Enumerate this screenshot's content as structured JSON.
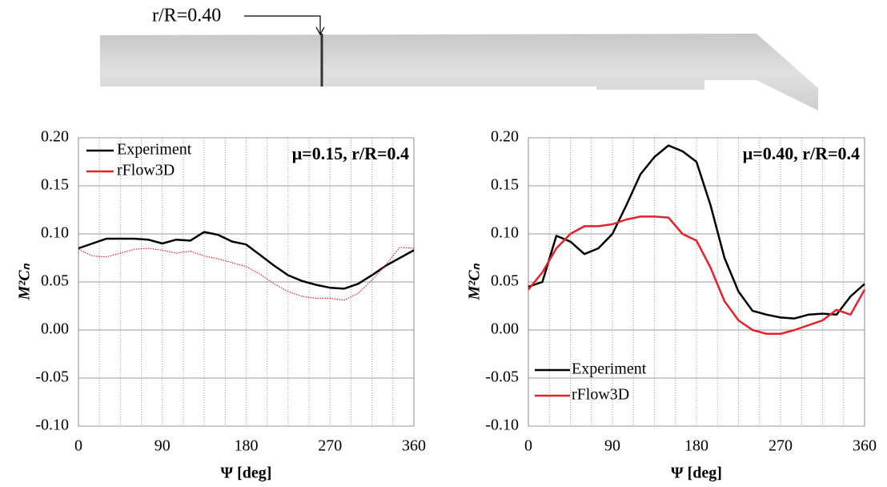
{
  "blade": {
    "label": "r/R=0.40"
  },
  "chart_data": [
    {
      "type": "line",
      "annotation": "μ=0.15, r/R=0.4",
      "xlabel": "Ψ [deg]",
      "ylabel": "M²Cₙ",
      "x": [
        0,
        15,
        30,
        45,
        60,
        75,
        90,
        105,
        120,
        135,
        150,
        165,
        180,
        195,
        210,
        225,
        240,
        255,
        270,
        285,
        300,
        315,
        330,
        345,
        360
      ],
      "series": [
        {
          "name": "Experiment",
          "color": "#000000",
          "style": "solid",
          "values": [
            0.085,
            0.09,
            0.095,
            0.095,
            0.095,
            0.094,
            0.09,
            0.094,
            0.093,
            0.102,
            0.099,
            0.092,
            0.089,
            0.078,
            0.067,
            0.057,
            0.051,
            0.047,
            0.044,
            0.043,
            0.048,
            0.057,
            0.067,
            0.075,
            0.083
          ]
        },
        {
          "name": "rFlow3D",
          "color": "#e8202a",
          "style": "dotted",
          "values": [
            0.084,
            0.077,
            0.076,
            0.08,
            0.084,
            0.085,
            0.083,
            0.08,
            0.082,
            0.077,
            0.074,
            0.07,
            0.066,
            0.058,
            0.048,
            0.04,
            0.035,
            0.033,
            0.033,
            0.031,
            0.038,
            0.052,
            0.068,
            0.086,
            0.085
          ]
        }
      ],
      "xlim": [
        0,
        360
      ],
      "xticks": [
        0,
        90,
        180,
        270,
        360
      ],
      "x_minor_grid": [
        22.5,
        45,
        67.5,
        90,
        112.5,
        135,
        157.5,
        180,
        202.5,
        225,
        247.5,
        270,
        292.5,
        315,
        337.5
      ],
      "ylim": [
        -0.1,
        0.2
      ],
      "yticks": [
        {
          "value": -0.1,
          "label": "-0.10"
        },
        {
          "value": -0.05,
          "label": "-0.05"
        },
        {
          "value": 0,
          "label": "0.00"
        },
        {
          "value": 0.05,
          "label": "0.05"
        },
        {
          "value": 0.1,
          "label": "0.10"
        },
        {
          "value": 0.15,
          "label": "0.15"
        },
        {
          "value": 0.2,
          "label": "0.20"
        }
      ],
      "grid": true,
      "legend": "upper left"
    },
    {
      "type": "line",
      "annotation": "μ=0.40, r/R=0.4",
      "xlabel": "Ψ [deg]",
      "ylabel": "M²Cₙ",
      "x": [
        0,
        15,
        30,
        45,
        60,
        75,
        90,
        105,
        120,
        135,
        150,
        165,
        180,
        195,
        210,
        225,
        240,
        255,
        270,
        285,
        300,
        315,
        330,
        345,
        360
      ],
      "series": [
        {
          "name": "Experiment",
          "color": "#000000",
          "style": "solid",
          "values": [
            0.045,
            0.05,
            0.098,
            0.092,
            0.079,
            0.085,
            0.1,
            0.13,
            0.162,
            0.18,
            0.192,
            0.186,
            0.175,
            0.13,
            0.075,
            0.04,
            0.02,
            0.016,
            0.013,
            0.012,
            0.016,
            0.017,
            0.016,
            0.035,
            0.048
          ]
        },
        {
          "name": "rFlow3D",
          "color": "#e8202a",
          "style": "solid",
          "values": [
            0.042,
            0.06,
            0.085,
            0.1,
            0.108,
            0.108,
            0.11,
            0.115,
            0.118,
            0.118,
            0.117,
            0.1,
            0.093,
            0.065,
            0.03,
            0.01,
            0.0,
            -0.004,
            -0.004,
            0.0,
            0.005,
            0.01,
            0.021,
            0.016,
            0.042
          ]
        }
      ],
      "xlim": [
        0,
        360
      ],
      "xticks": [
        0,
        90,
        180,
        270,
        360
      ],
      "x_minor_grid": [
        22.5,
        45,
        67.5,
        90,
        112.5,
        135,
        157.5,
        180,
        202.5,
        225,
        247.5,
        270,
        292.5,
        315,
        337.5
      ],
      "ylim": [
        -0.1,
        0.2
      ],
      "yticks": [
        {
          "value": -0.1,
          "label": "-0.10"
        },
        {
          "value": -0.05,
          "label": "-0.05"
        },
        {
          "value": 0,
          "label": "0.00"
        },
        {
          "value": 0.05,
          "label": "0.05"
        },
        {
          "value": 0.1,
          "label": "0.10"
        },
        {
          "value": 0.15,
          "label": "0.15"
        },
        {
          "value": 0.2,
          "label": "0.20"
        }
      ],
      "grid": true,
      "legend": "lower left"
    }
  ]
}
